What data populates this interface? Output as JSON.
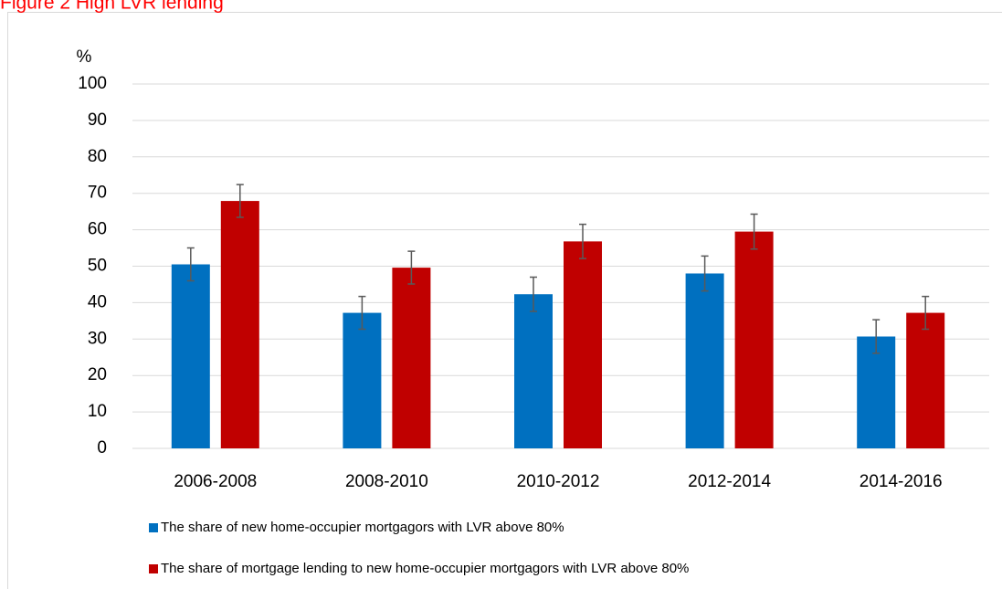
{
  "chart_data": {
    "type": "bar",
    "title": "Figure 2 High LVR lending",
    "ylabel": "%",
    "categories": [
      "2006-2008",
      "2008-2010",
      "2010-2012",
      "2012-2014",
      "2014-2016"
    ],
    "series": [
      {
        "name": "The share of new home-occupier mortgagors with LVR above 80%",
        "color": "#0070c0",
        "values": [
          50.5,
          37.2,
          42.3,
          48.0,
          30.7
        ],
        "errors": [
          4.5,
          4.5,
          4.7,
          4.8,
          4.6
        ]
      },
      {
        "name": "The share of mortgage lending to new home-occupier mortgagors with LVR above 80%",
        "color": "#c00000",
        "values": [
          67.9,
          49.6,
          56.8,
          59.5,
          37.2
        ],
        "errors": [
          4.5,
          4.5,
          4.7,
          4.8,
          4.5
        ]
      }
    ],
    "ylim": [
      0,
      100
    ],
    "yticks": [
      0,
      10,
      20,
      30,
      40,
      50,
      60,
      70,
      80,
      90,
      100
    ],
    "grid": true
  }
}
